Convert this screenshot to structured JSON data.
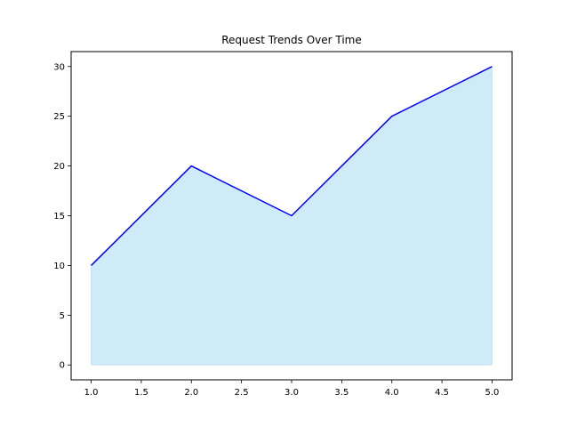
{
  "chart_data": {
    "type": "area",
    "title": "Request Trends Over Time",
    "xlabel": "",
    "ylabel": "",
    "x": [
      1.0,
      2.0,
      3.0,
      4.0,
      5.0
    ],
    "series": [
      {
        "values": [
          10,
          20,
          15,
          25,
          30
        ],
        "line_color": "#0000ff",
        "fill_color": "#87ceeb",
        "fill_opacity": 0.4
      }
    ],
    "xlim": [
      0.8,
      5.2
    ],
    "ylim": [
      -1.5,
      31.5
    ],
    "x_ticks": [
      "1.0",
      "1.5",
      "2.0",
      "2.5",
      "3.0",
      "3.5",
      "4.0",
      "4.5",
      "5.0"
    ],
    "y_ticks": [
      "0",
      "5",
      "10",
      "15",
      "20",
      "25",
      "30"
    ],
    "grid": false,
    "legend": "none"
  }
}
